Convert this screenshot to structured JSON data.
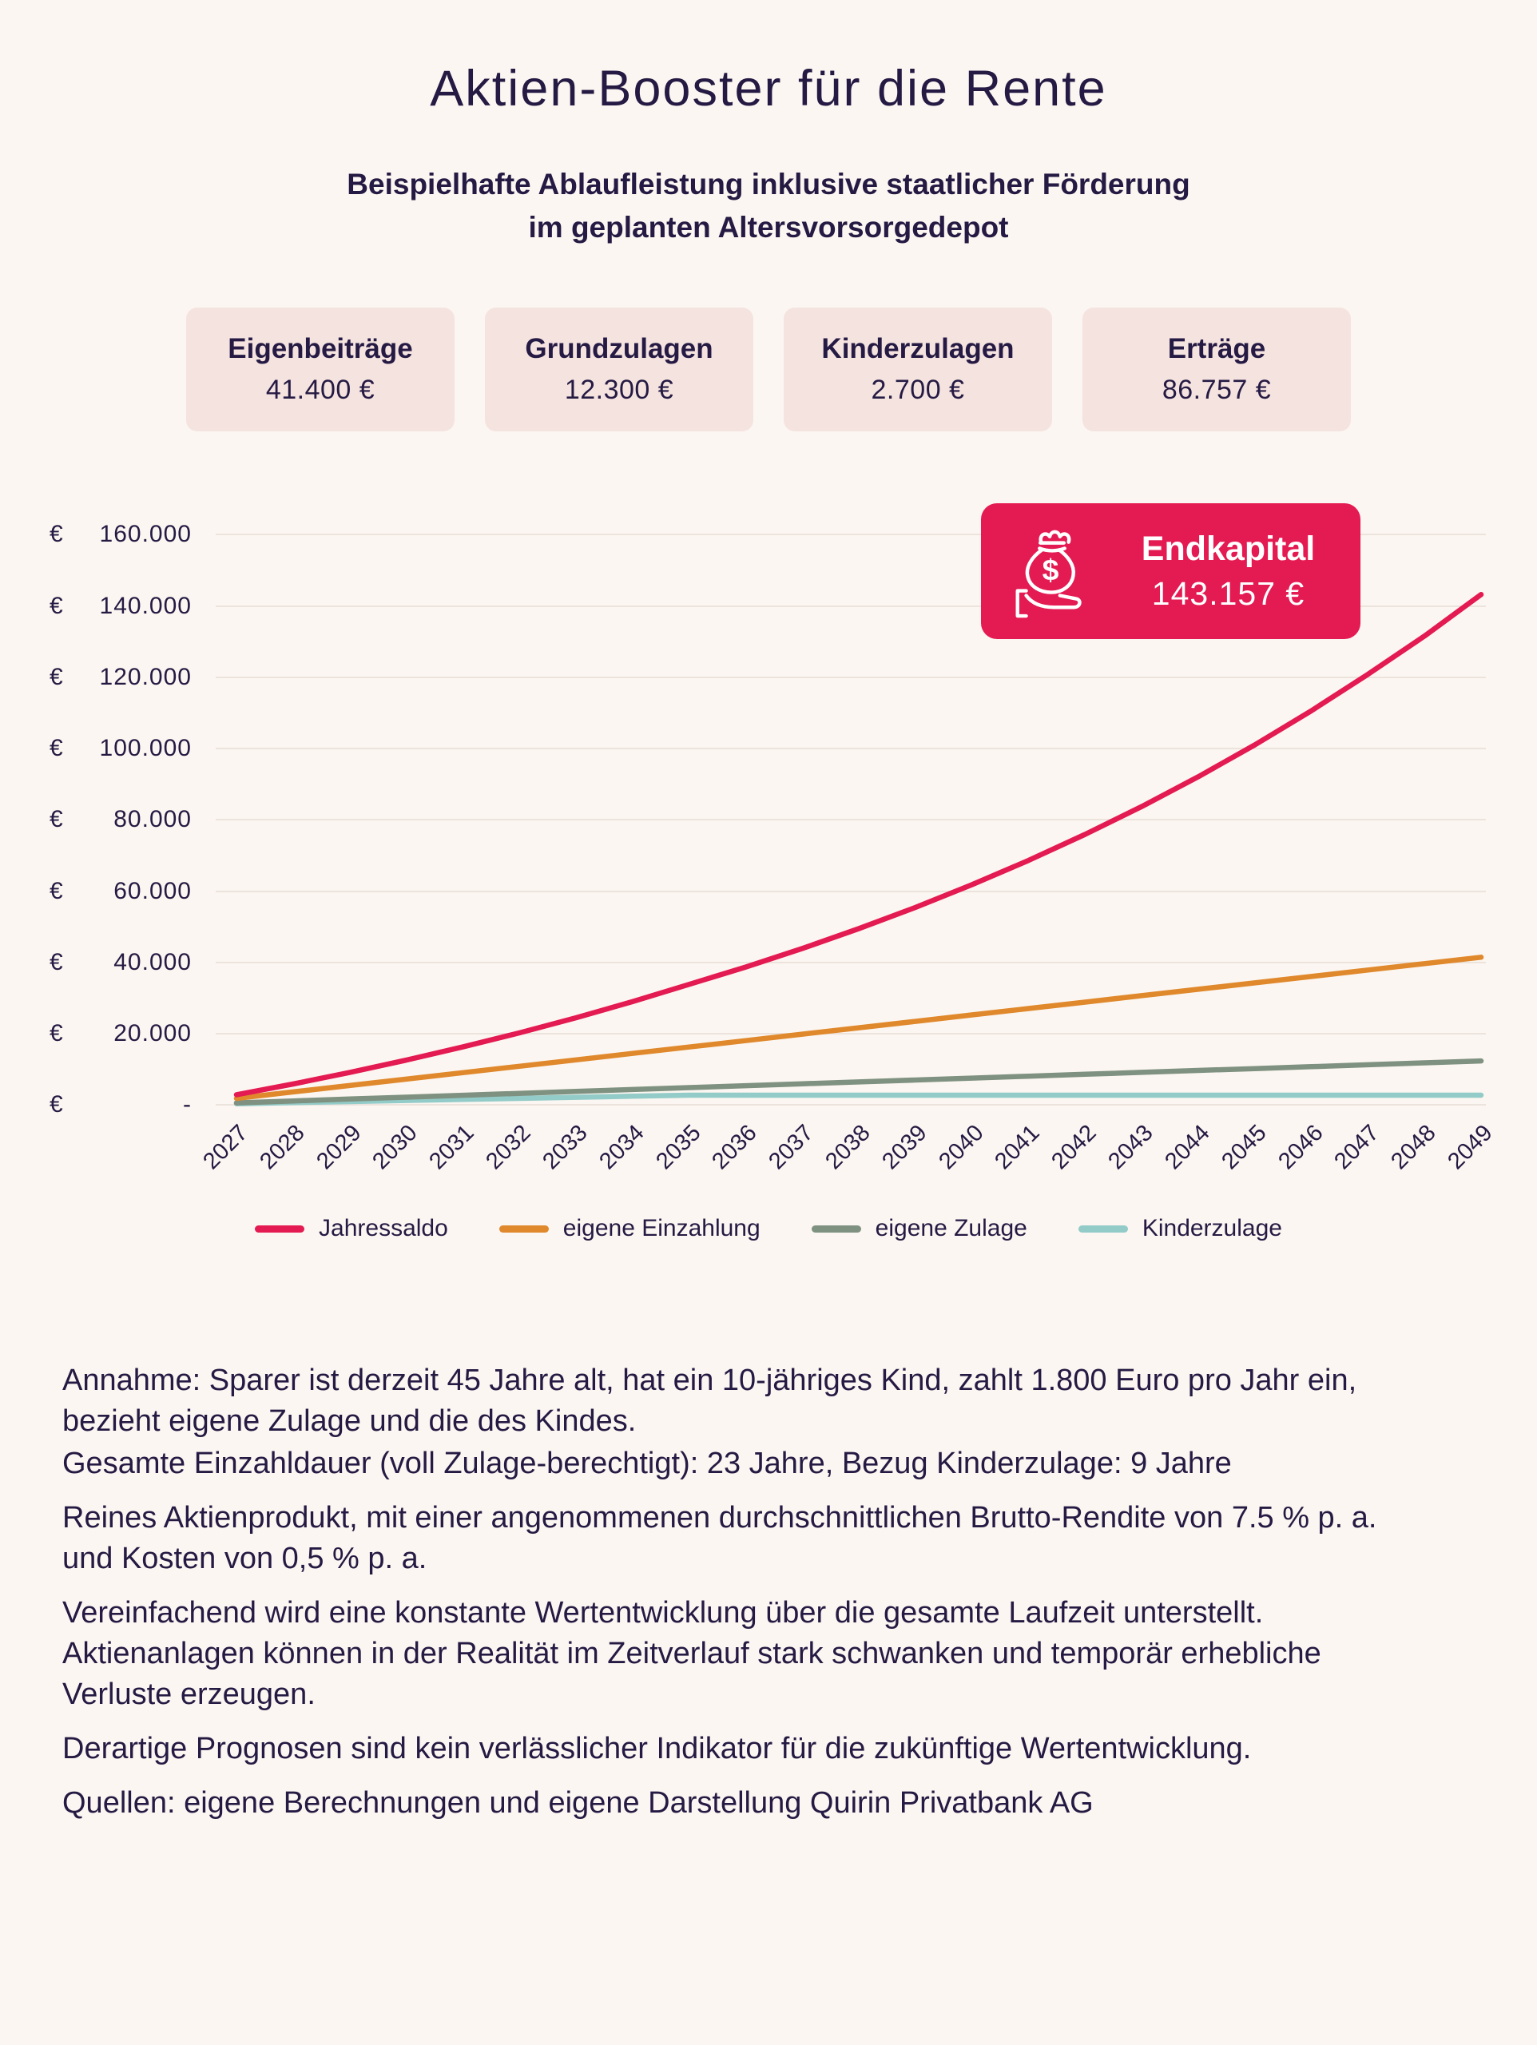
{
  "header": {
    "title": "Aktien-Booster für die Rente",
    "subtitle_line1": "Beispielhafte Ablaufleistung inklusive staatlicher Förderung",
    "subtitle_line2": "im geplanten Altersvorsorgedepot"
  },
  "stats": [
    {
      "label": "Eigenbeiträge",
      "value": "41.400 €"
    },
    {
      "label": "Grundzulagen",
      "value": "12.300 €"
    },
    {
      "label": "Kinderzulagen",
      "value": "2.700 €"
    },
    {
      "label": "Erträge",
      "value": "86.757 €"
    }
  ],
  "endkapital_badge": {
    "label": "Endkapital",
    "value": "143.157 €",
    "color": "#e41a52",
    "icon": "money-bag-in-hand-icon"
  },
  "chart_data": {
    "type": "line",
    "title": "",
    "xlabel": "",
    "ylabel": "€",
    "grid": "horizontal",
    "legend_position": "bottom",
    "x": [
      2027,
      2028,
      2029,
      2030,
      2031,
      2032,
      2033,
      2034,
      2035,
      2036,
      2037,
      2038,
      2039,
      2040,
      2041,
      2042,
      2043,
      2044,
      2045,
      2046,
      2047,
      2048,
      2049
    ],
    "y_axis": {
      "currency_prefix": "€",
      "range": [
        0,
        160000
      ],
      "ticks": [
        {
          "value": 160000,
          "label": "160.000"
        },
        {
          "value": 140000,
          "label": "140.000"
        },
        {
          "value": 120000,
          "label": "120.000"
        },
        {
          "value": 100000,
          "label": "100.000"
        },
        {
          "value": 80000,
          "label": "80.000"
        },
        {
          "value": 60000,
          "label": "60.000"
        },
        {
          "value": 40000,
          "label": "40.000"
        },
        {
          "value": 20000,
          "label": "20.000"
        },
        {
          "value": 0,
          "label": "-"
        }
      ]
    },
    "series": [
      {
        "name": "Jahressaldo",
        "color": "#e41a52",
        "values": [
          2819,
          5836,
          9064,
          12518,
          16214,
          20168,
          24399,
          28926,
          33770,
          38632,
          43835,
          49402,
          55359,
          61733,
          68553,
          75850,
          83658,
          92013,
          100952,
          110517,
          120752,
          131500,
          143157
        ]
      },
      {
        "name": "eigene Einzahlung",
        "color": "#e0882c",
        "values": [
          1800,
          3600,
          5400,
          7200,
          9000,
          10800,
          12600,
          14400,
          16200,
          18000,
          19800,
          21600,
          23400,
          25200,
          27000,
          28800,
          30600,
          32400,
          34200,
          36000,
          37800,
          39600,
          41400
        ]
      },
      {
        "name": "eigene Zulage",
        "color": "#7f9180",
        "values": [
          535,
          1070,
          1604,
          2139,
          2674,
          3209,
          3743,
          4278,
          4813,
          5348,
          5883,
          6417,
          6952,
          7487,
          8022,
          8557,
          9091,
          9626,
          10161,
          10696,
          11230,
          11765,
          12300
        ]
      },
      {
        "name": "Kinderzulage",
        "color": "#93cbc8",
        "values": [
          300,
          600,
          900,
          1200,
          1500,
          1800,
          2100,
          2400,
          2700,
          2700,
          2700,
          2700,
          2700,
          2700,
          2700,
          2700,
          2700,
          2700,
          2700,
          2700,
          2700,
          2700,
          2700
        ]
      }
    ]
  },
  "footnotes": [
    "Annahme: Sparer ist derzeit 45 Jahre alt, hat ein 10-jähriges Kind, zahlt 1.800 Euro pro Jahr ein, bezieht eigene Zulage und die des Kindes.",
    "Gesamte Einzahldauer (voll Zulage-berechtigt): 23 Jahre, Bezug Kinderzulage: 9 Jahre",
    "Reines Aktienprodukt, mit einer angenommenen durchschnittlichen Brutto-Rendite von 7.5 % p. a. und Kosten von 0,5 % p. a.",
    "Vereinfachend wird eine konstante Wertentwicklung über die gesamte Laufzeit unterstellt. Aktienanlagen können in der Realität im Zeitverlauf stark schwanken und temporär erhebliche Verluste erzeugen.",
    "Derartige Prognosen sind kein verlässlicher Indikator für die zukünftige Wertentwicklung.",
    "Quellen: eigene Berechnungen und eigene Darstellung Quirin Privatbank AG"
  ]
}
